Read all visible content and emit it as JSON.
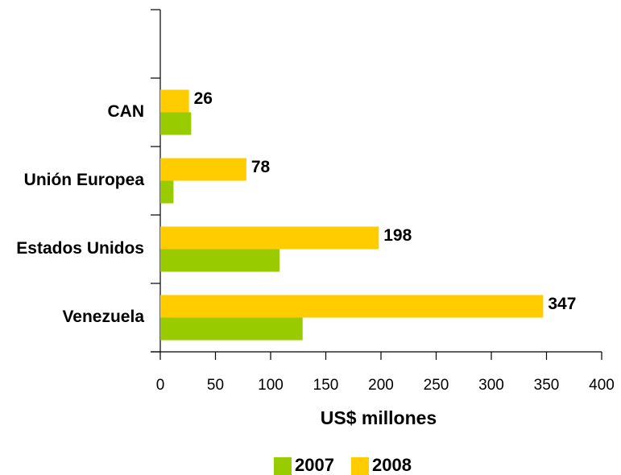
{
  "chart_data": {
    "type": "hbar",
    "categories": [
      "Venezuela",
      "Estados Unidos",
      "Unión Europea",
      "CAN",
      null
    ],
    "series": [
      {
        "name": "2007",
        "color": "#99cc00",
        "values": [
          129,
          108,
          12,
          28,
          null
        ]
      },
      {
        "name": "2008",
        "color": "#ffcc00",
        "values": [
          347,
          198,
          78,
          26,
          null
        ]
      }
    ],
    "xlabel": "US$ millones",
    "xlim": [
      0,
      400
    ],
    "xticks": [
      0,
      50,
      100,
      150,
      200,
      250,
      300,
      350,
      400
    ],
    "value_label_series": "2008",
    "legend": "bottom"
  }
}
